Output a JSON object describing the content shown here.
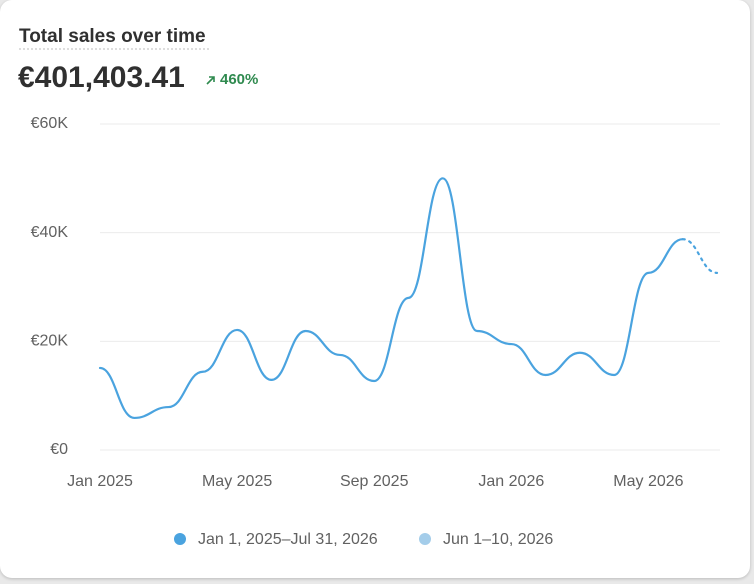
{
  "header": {
    "title": "Total sales over time",
    "total": "€401,403.41",
    "change": "460%"
  },
  "chart_data": {
    "type": "line",
    "categories": [
      "Jan 2025",
      null,
      null,
      null,
      "May 2025",
      null,
      null,
      null,
      "Sep 2025",
      null,
      null,
      null,
      "Jan 2026",
      null,
      null,
      null,
      "May 2026",
      null,
      null
    ],
    "series": [
      {
        "name": "Jan 1, 2025–Jul 31, 2026",
        "color": "#4aa3df",
        "values": [
          15100,
          5900,
          7900,
          14400,
          22100,
          12900,
          21900,
          17500,
          12700,
          28000,
          50000,
          21900,
          19500,
          13800,
          17900,
          13800,
          32600,
          38800,
          32600
        ]
      },
      {
        "name": "Jun 1–10, 2026",
        "color": "#a4cdea",
        "values": [
          null,
          null,
          null,
          null,
          null,
          null,
          null,
          null,
          null,
          null,
          null,
          null,
          null,
          null,
          null,
          null,
          null,
          null,
          null
        ]
      }
    ],
    "ylim": [
      0,
      60000
    ],
    "yticks": [
      {
        "value": 0,
        "label": "€0"
      },
      {
        "value": 20000,
        "label": "€20K"
      },
      {
        "value": 40000,
        "label": "€40K"
      },
      {
        "value": 60000,
        "label": "€60K"
      }
    ],
    "grid": true,
    "dotted_last_segment": true
  }
}
